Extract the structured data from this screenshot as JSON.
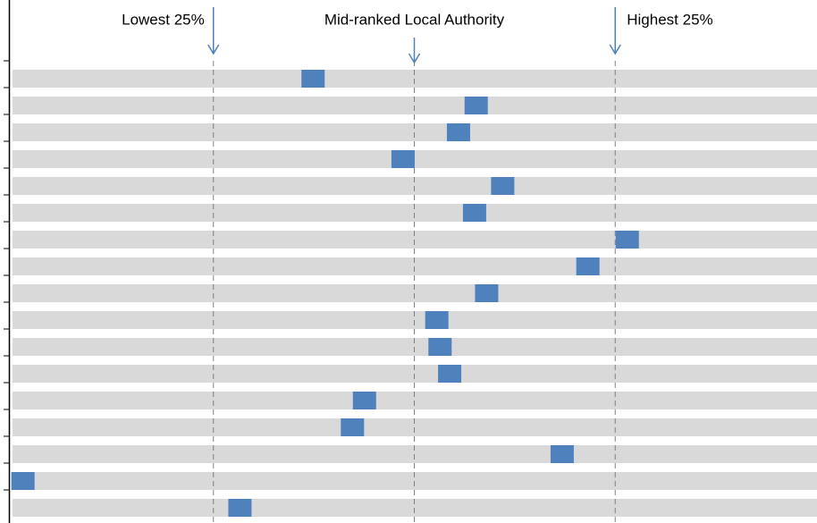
{
  "chart_data": {
    "type": "rank",
    "annotations": [
      "Lowest 25%",
      "Mid-ranked Local Authority",
      "Highest 25%"
    ],
    "categories": [
      null,
      null,
      null,
      null,
      null,
      null,
      null,
      null,
      null,
      null,
      null,
      null,
      null,
      null,
      null,
      null,
      null
    ],
    "values": [
      37.4,
      57.7,
      55.5,
      48.6,
      61.0,
      57.5,
      76.5,
      71.6,
      59.0,
      52.8,
      53.2,
      54.4,
      43.8,
      42.3,
      68.4,
      1.3,
      28.3
    ],
    "color": "#4f81bd",
    "track_color": "#d9d9d9",
    "xlim": [
      0,
      100
    ],
    "xticks": [
      25,
      50,
      75
    ],
    "grid": true
  }
}
